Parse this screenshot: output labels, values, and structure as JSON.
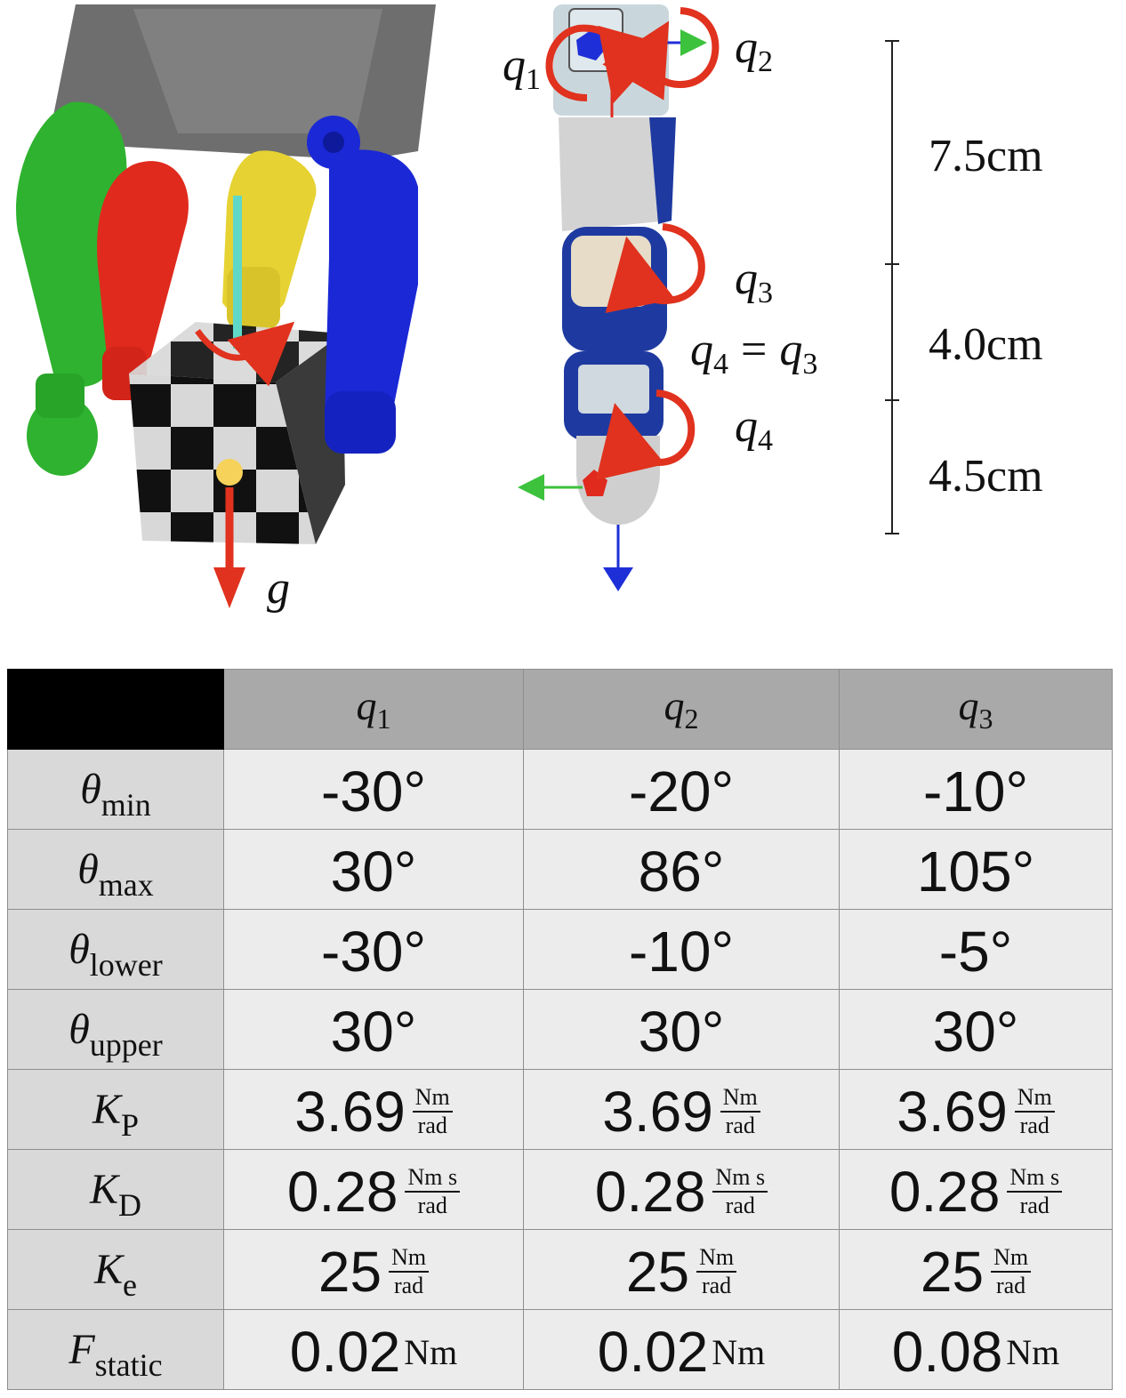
{
  "figure": {
    "labels": {
      "q1": {
        "base": "q",
        "sub": "1"
      },
      "q2": {
        "base": "q",
        "sub": "2"
      },
      "q3": {
        "base": "q",
        "sub": "3"
      },
      "q4": {
        "base": "q",
        "sub": "4"
      },
      "coupling": {
        "lhs_base": "q",
        "lhs_sub": "4",
        "eq": "=",
        "rhs_base": "q",
        "rhs_sub": "3"
      },
      "theta": "θ",
      "gravity": "g"
    },
    "dimensions": [
      "7.5cm",
      "4.0cm",
      "4.5cm"
    ],
    "colors": {
      "rotation_arrow": "#e0321e",
      "finger_green": "#2fb22f",
      "finger_red": "#e02a1e",
      "finger_yellow": "#e6d232",
      "finger_blue": "#1a28d6",
      "palm": "#6e6e6e",
      "axis_cyan": "#5fd8c8",
      "com_dot": "#f6d25a",
      "axis_green": "#3cc23c",
      "axis_blue": "#1f2fd8"
    }
  },
  "table": {
    "columns": [
      {
        "base": "q",
        "sub": "1"
      },
      {
        "base": "q",
        "sub": "2"
      },
      {
        "base": "q",
        "sub": "3"
      }
    ],
    "rows": [
      {
        "symbol": "θ",
        "sub": "min",
        "values": [
          "-30°",
          "-20°",
          "-10°"
        ],
        "unit": null
      },
      {
        "symbol": "θ",
        "sub": "max",
        "values": [
          "30°",
          "86°",
          "105°"
        ],
        "unit": null
      },
      {
        "symbol": "θ",
        "sub": "lower",
        "values": [
          "-30°",
          "-10°",
          "-5°"
        ],
        "unit": null
      },
      {
        "symbol": "θ",
        "sub": "upper",
        "values": [
          "30°",
          "30°",
          "30°"
        ],
        "unit": null
      },
      {
        "symbol": "K",
        "sub": "P",
        "values": [
          "3.69",
          "3.69",
          "3.69"
        ],
        "unit": {
          "top": "Nm",
          "bottom": "rad"
        }
      },
      {
        "symbol": "K",
        "sub": "D",
        "values": [
          "0.28",
          "0.28",
          "0.28"
        ],
        "unit": {
          "top": "Nm s",
          "bottom": "rad"
        }
      },
      {
        "symbol": "K",
        "sub": "e",
        "values": [
          "25",
          "25",
          "25"
        ],
        "unit": {
          "top": "Nm",
          "bottom": "rad"
        }
      },
      {
        "symbol": "F",
        "sub": "static",
        "values": [
          "0.02",
          "0.02",
          "0.08"
        ],
        "unit": {
          "plain": "Nm"
        }
      }
    ]
  }
}
